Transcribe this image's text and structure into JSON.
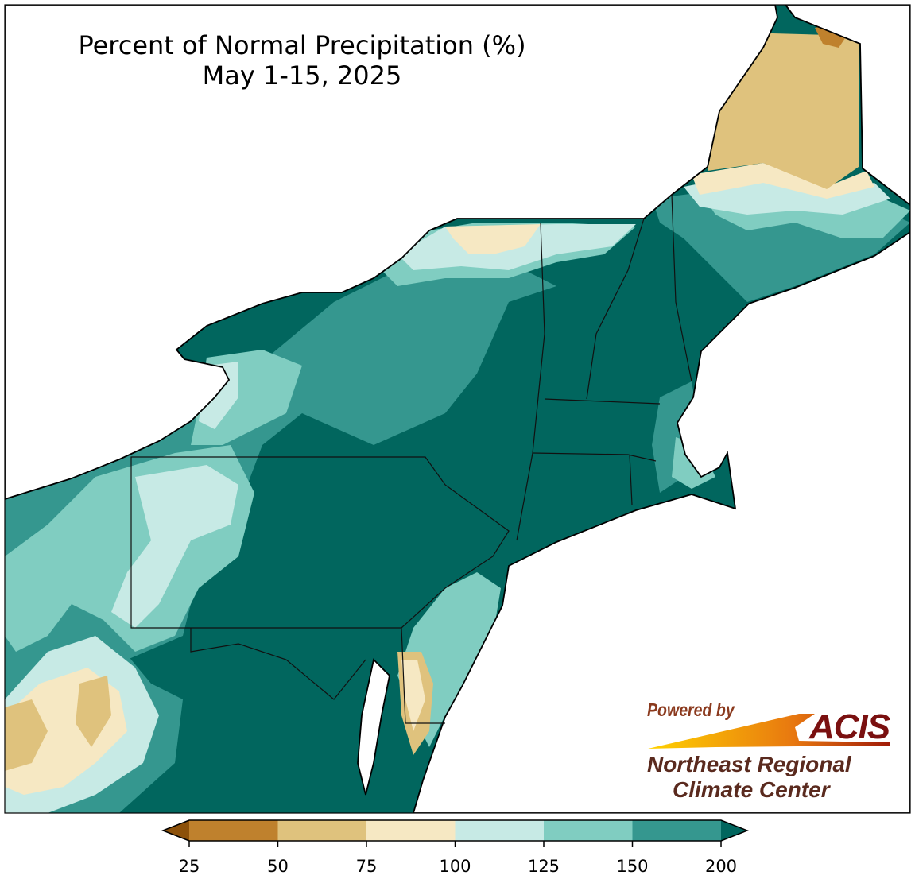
{
  "title": {
    "line1": "Percent of Normal Precipitation (%)",
    "line2": "May 1-15, 2025"
  },
  "colorbar": {
    "ticks": [
      "25",
      "50",
      "75",
      "100",
      "125",
      "150",
      "200"
    ],
    "bins": [
      {
        "range": "<25",
        "color": "#8c510a"
      },
      {
        "range": "25-50",
        "color": "#bf812d"
      },
      {
        "range": "50-75",
        "color": "#dfc27d"
      },
      {
        "range": "75-100",
        "color": "#f6e8c3"
      },
      {
        "range": "100-125",
        "color": "#c7eae5"
      },
      {
        "range": "125-150",
        "color": "#80cdc1"
      },
      {
        "range": "150-200",
        "color": "#35978f"
      },
      {
        "range": ">200",
        "color": "#01665e"
      }
    ]
  },
  "logo": {
    "powered_by": "Powered by",
    "brand": "ACIS",
    "org_line1": "Northeast Regional",
    "org_line2": "Climate Center"
  }
}
